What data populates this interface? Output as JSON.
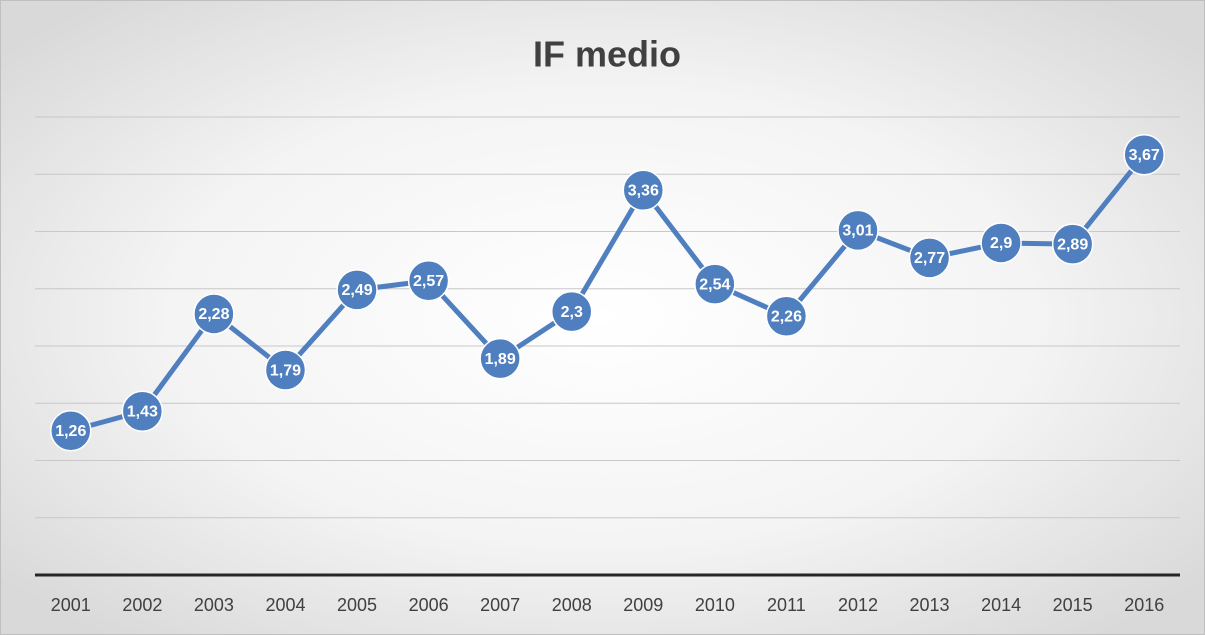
{
  "chart_data": {
    "type": "line",
    "title": "IF medio",
    "categories": [
      "2001",
      "2002",
      "2003",
      "2004",
      "2005",
      "2006",
      "2007",
      "2008",
      "2009",
      "2010",
      "2011",
      "2012",
      "2013",
      "2014",
      "2015",
      "2016"
    ],
    "series": [
      {
        "name": "IF medio",
        "color": "#4f7fbf",
        "values": [
          1.26,
          1.43,
          2.28,
          1.79,
          2.49,
          2.57,
          1.89,
          2.3,
          3.36,
          2.54,
          2.26,
          3.01,
          2.77,
          2.9,
          2.89,
          3.67
        ],
        "value_labels": [
          "1,26",
          "1,43",
          "2,28",
          "1,79",
          "2,49",
          "2,57",
          "1,89",
          "2,3",
          "3,36",
          "2,54",
          "2,26",
          "3,01",
          "2,77",
          "2,9",
          "2,89",
          "3,67"
        ]
      }
    ],
    "ylim": [
      0,
      4
    ],
    "yticks": [
      0,
      0.5,
      1,
      1.5,
      2,
      2.5,
      3,
      3.5,
      4
    ],
    "grid": true,
    "legend": false
  }
}
